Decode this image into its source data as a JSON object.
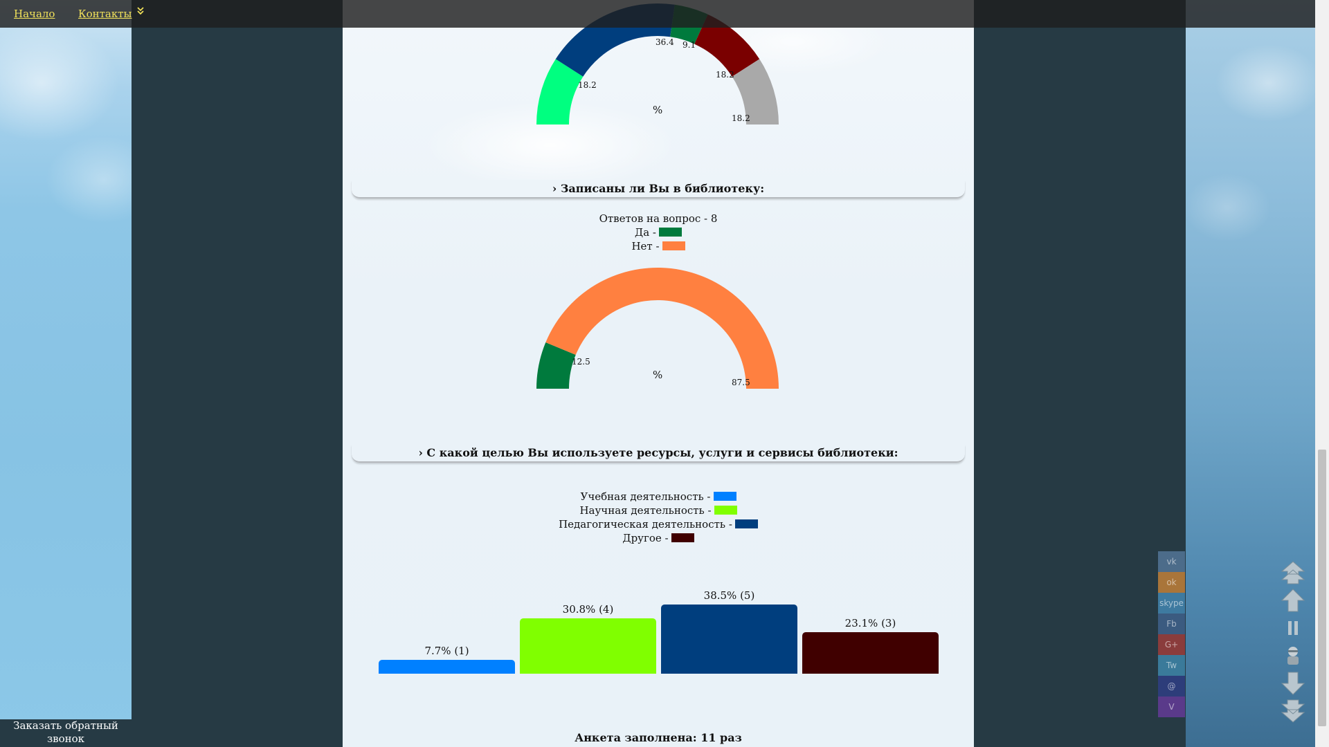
{
  "nav": {
    "home": "Начало",
    "contacts": "Контакты",
    "more_icon": "double-chevron-down-icon"
  },
  "gauge1": {
    "percent_sign": "%",
    "segments": [
      {
        "value": 18.2,
        "color": "#00ff80",
        "label": "18.2"
      },
      {
        "value": 36.4,
        "color": "#003e7e",
        "label": "36.4"
      },
      {
        "value": 9.1,
        "color": "#007a3d",
        "label": "9.1"
      },
      {
        "value": 18.2,
        "color": "#7a0000",
        "label": "18.2"
      },
      {
        "value": 18.2,
        "color": "#a9a9a9",
        "label": "18.2"
      }
    ]
  },
  "section2": {
    "title": "› Записаны ли Вы в библиотеку:",
    "answers": "Ответов на вопрос - 8",
    "legend": [
      {
        "label": "Да -",
        "color": "#007a3d"
      },
      {
        "label": "Нет -",
        "color": "#ff8040"
      }
    ],
    "gauge": {
      "percent_sign": "%",
      "segments": [
        {
          "value": 12.5,
          "color": "#007a3d",
          "label": "12.5"
        },
        {
          "value": 87.5,
          "color": "#ff8040",
          "label": "87.5"
        }
      ]
    }
  },
  "section3": {
    "title": "› С какой целью Вы используете ресурсы, услуги и сервисы библиотеки:",
    "legend": [
      {
        "label": "Учебная деятельность -",
        "color": "#0080ff"
      },
      {
        "label": "Научная деятельность -",
        "color": "#80ff00"
      },
      {
        "label": "Педагогическая деятельность -",
        "color": "#003e7e"
      },
      {
        "label": "Другое -",
        "color": "#400000"
      }
    ]
  },
  "chart_data": {
    "type": "bar",
    "categories": [
      "Учебная деятельность",
      "Научная деятельность",
      "Педагогическая деятельность",
      "Другое"
    ],
    "values": [
      7.7,
      30.8,
      38.5,
      23.1
    ],
    "counts": [
      1,
      4,
      5,
      3
    ],
    "labels": [
      "7.7% (1)",
      "30.8% (4)",
      "38.5% (5)",
      "23.1% (3)"
    ],
    "colors": [
      "#0080ff",
      "#80ff00",
      "#003e7e",
      "#400000"
    ],
    "ylim": [
      0,
      38.5
    ]
  },
  "footer": {
    "count": "Анкета заполнена: 11 раз"
  },
  "callback": {
    "label": "Заказать обратный звонок"
  },
  "social": [
    "vk",
    "ok",
    "skype",
    "Fb",
    "G+",
    "Tw",
    "@",
    "V"
  ],
  "social_colors": [
    "#4c6c8a",
    "#a9753a",
    "#3e7aa0",
    "#3b5b80",
    "#8a3c3c",
    "#3a7a9a",
    "#2d3d7a",
    "#5a3a8a"
  ],
  "scroll_controls": [
    "scroll-to-top-icon",
    "scroll-up-icon",
    "pause-icon",
    "person-icon",
    "scroll-down-icon",
    "scroll-to-bottom-icon"
  ]
}
